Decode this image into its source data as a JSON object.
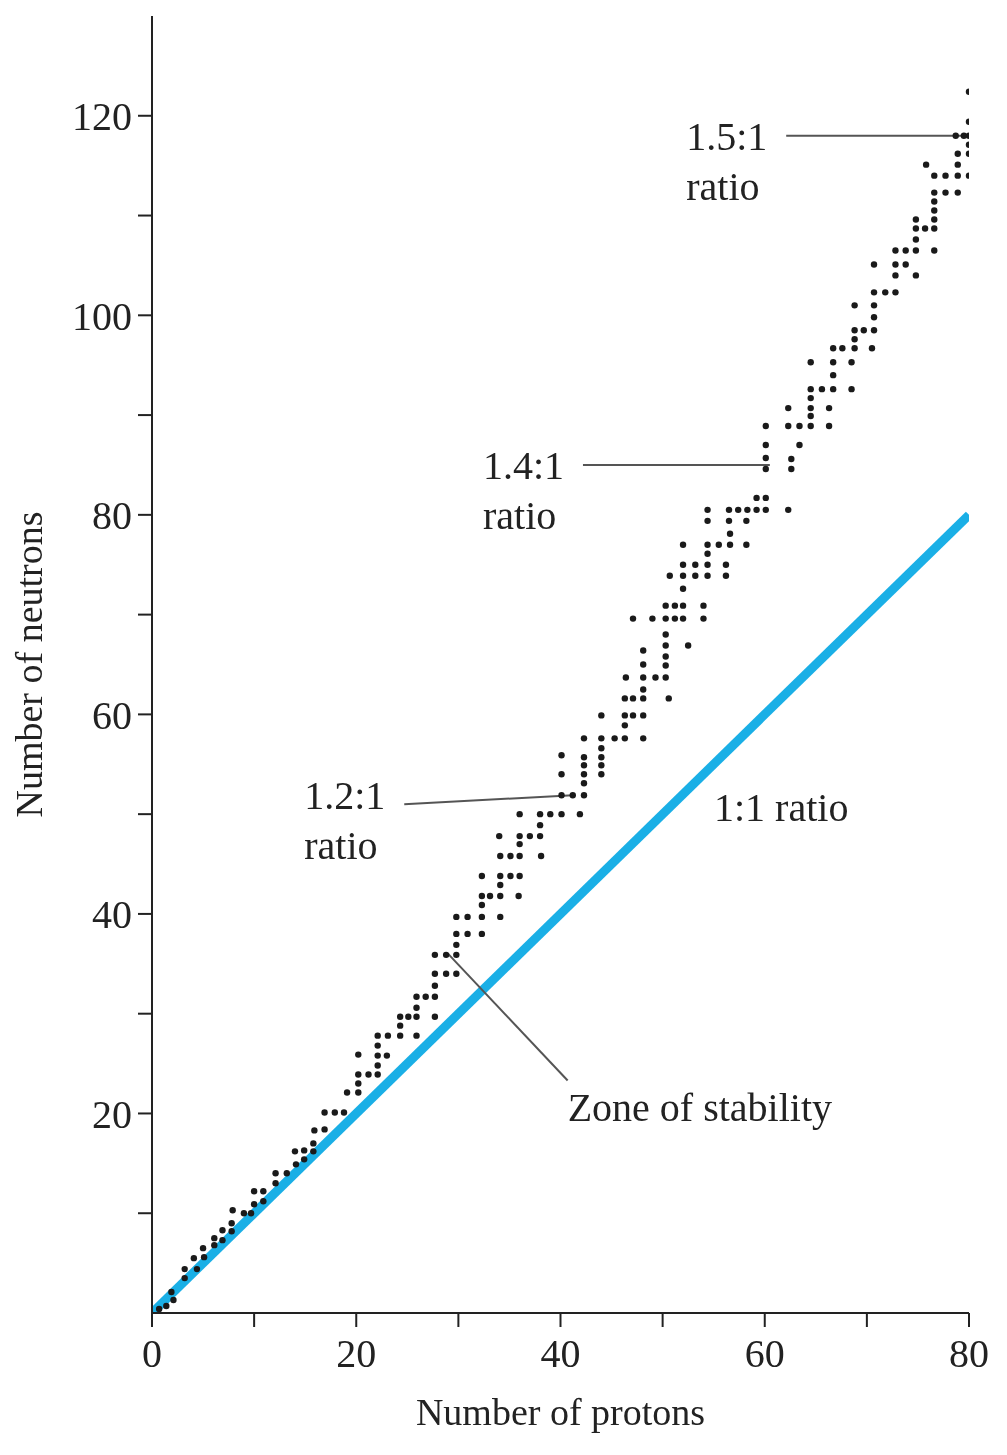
{
  "chart_data": {
    "type": "scatter",
    "xlabel": "Number of protons",
    "ylabel": "Number of neutrons",
    "xlim": [
      0,
      80
    ],
    "ylim": [
      0,
      130
    ],
    "xticks": [
      0,
      {
        "value": 10,
        "label": null
      },
      20,
      {
        "value": 30,
        "label": null
      },
      40,
      {
        "value": 50,
        "label": null
      },
      60,
      {
        "value": 70,
        "label": null
      },
      80
    ],
    "yticks": [
      {
        "value": 10,
        "label": null
      },
      20,
      {
        "value": 30,
        "label": null
      },
      40,
      {
        "value": 50,
        "label": null
      },
      60,
      {
        "value": 70,
        "label": null
      },
      80,
      {
        "value": 90,
        "label": null
      },
      100,
      {
        "value": 110,
        "label": null
      },
      120
    ],
    "marker": "circle",
    "series": [
      {
        "color": "#1a1a1a",
        "x": [
          0.7,
          1.4,
          2.1,
          1.9,
          3.2,
          3.2,
          4.4,
          4.1,
          5.1,
          5.0,
          6.1,
          6.1,
          6.9,
          6.9,
          7.8,
          7.8,
          7.9,
          9.0,
          9.7,
          10.0,
          10.9,
          10.0,
          10.9,
          12.1,
          12.1,
          13.2,
          14.1,
          14.9,
          14.0,
          14.9,
          15.8,
          15.8,
          15.9,
          16.9,
          16.9,
          17.9,
          18.8,
          19.1,
          20.2,
          20.2,
          20.2,
          20.2,
          21.2,
          22.1,
          22.1,
          22.1,
          23.0,
          22.1,
          22.1,
          23.1,
          24.3,
          24.3,
          24.3,
          25.1,
          25.9,
          25.9,
          25.9,
          25.9,
          26.8,
          27.7,
          27.7,
          27.7,
          27.7,
          27.7,
          28.8,
          29.8,
          29.8,
          28.8,
          29.8,
          29.8,
          30.9,
          32.3,
          29.8,
          30.9,
          32.3,
          34.1,
          32.3,
          32.3,
          33.1,
          34.1,
          35.9,
          34.1,
          32.3,
          34.1,
          35.1,
          36.0,
          34.1,
          35.1,
          36.0,
          38.1,
          36.0,
          36.0,
          34.0,
          37.0,
          38.0,
          38.0,
          36.0,
          38.0,
          39.0,
          40.1,
          41.9,
          40.1,
          41.2,
          42.3,
          42.3,
          42.3,
          42.3,
          42.3,
          42.3,
          40.1,
          40.1,
          44.0,
          44.0,
          44.0,
          44.0,
          44.0,
          44.0,
          45.3,
          46.3,
          48.1,
          46.3,
          46.3,
          47.1,
          48.1,
          46.3,
          47.1,
          48.1,
          50.6,
          48.1,
          46.4,
          48.1,
          49.3,
          50.3,
          48.1,
          48.1,
          50.3,
          50.3,
          50.3,
          52.5,
          50.3,
          47.1,
          49.0,
          50.3,
          51.2,
          52.0,
          54.0,
          50.3,
          51.2,
          52.0,
          54.0,
          52.0,
          50.7,
          52.0,
          53.2,
          54.4,
          56.2,
          52.0,
          53.2,
          54.4,
          56.2,
          54.4,
          52.0,
          54.4,
          55.5,
          56.6,
          58.2,
          56.6,
          54.4,
          56.5,
          58.2,
          54.4,
          56.5,
          57.4,
          58.3,
          59.2,
          60.1,
          62.3,
          59.2,
          60.1,
          60.1,
          60.1,
          60.1,
          60.1,
          62.6,
          62.6,
          63.4,
          62.3,
          63.4,
          64.5,
          66.3,
          64.5,
          62.3,
          64.5,
          66.3,
          64.5,
          64.5,
          65.6,
          66.7,
          68.5,
          80.0,
          80.0,
          80.0,
          78.7,
          79.5,
          80.0,
          80.0,
          78.9,
          78.9,
          75.8,
          76.6,
          77.7,
          78.9,
          80.0,
          76.6,
          77.7,
          78.9,
          76.6,
          76.6,
          76.6,
          76.6,
          76.6,
          74.8,
          74.8,
          75.7,
          74.8,
          74.8,
          73.8,
          72.8,
          72.8,
          73.8,
          70.7,
          72.8,
          74.8,
          70.7,
          71.8,
          72.8,
          68.8,
          70.7,
          70.7,
          68.8,
          69.7,
          70.7,
          68.8,
          66.7,
          67.6,
          68.8,
          70.5,
          64.5,
          66.7,
          68.5,
          66.7
        ],
        "values": [
          0.4,
          0.7,
          1.3,
          2.1,
          3.5,
          4.4,
          4.4,
          5.5,
          5.6,
          6.5,
          6.8,
          7.5,
          7.3,
          8.3,
          8.2,
          9.0,
          10.3,
          10.0,
          10.0,
          10.9,
          11.2,
          12.2,
          12.2,
          13.0,
          14.0,
          14.0,
          14.9,
          15.4,
          16.2,
          16.3,
          16.2,
          17.0,
          18.3,
          18.4,
          20.1,
          20.1,
          20.1,
          22.1,
          22.1,
          23.0,
          23.9,
          25.9,
          23.9,
          23.9,
          24.8,
          25.8,
          25.8,
          26.8,
          27.8,
          27.8,
          27.8,
          28.8,
          29.7,
          29.7,
          29.7,
          27.8,
          30.6,
          31.7,
          31.7,
          31.7,
          29.7,
          32.8,
          34.0,
          35.9,
          35.9,
          35.9,
          36.9,
          34.0,
          34.0,
          38.0,
          38.0,
          38.0,
          39.7,
          39.7,
          39.7,
          39.7,
          40.9,
          41.8,
          41.8,
          41.8,
          41.8,
          42.9,
          43.8,
          43.8,
          43.8,
          43.8,
          45.8,
          45.8,
          45.8,
          45.8,
          47.0,
          47.8,
          47.8,
          47.8,
          47.8,
          48.9,
          50.0,
          50.0,
          50.0,
          50.0,
          50.0,
          51.9,
          51.9,
          51.9,
          53.1,
          54.0,
          54.9,
          55.7,
          57.6,
          54.0,
          55.9,
          54.0,
          54.9,
          55.7,
          56.6,
          57.6,
          59.9,
          57.6,
          57.6,
          57.6,
          58.9,
          59.9,
          59.9,
          59.9,
          61.6,
          61.6,
          61.6,
          61.6,
          62.5,
          63.7,
          63.7,
          63.7,
          63.7,
          65.0,
          66.4,
          64.9,
          65.8,
          66.9,
          66.9,
          68.0,
          69.6,
          69.6,
          69.6,
          69.6,
          69.6,
          69.6,
          70.9,
          70.9,
          70.9,
          70.9,
          72.6,
          73.9,
          73.9,
          73.9,
          73.9,
          73.9,
          75.0,
          75.0,
          75.0,
          75.0,
          76.1,
          77.0,
          77.0,
          77.0,
          77.0,
          77.0,
          78.1,
          79.4,
          79.4,
          79.4,
          80.5,
          80.5,
          80.5,
          80.5,
          80.5,
          80.5,
          80.5,
          81.7,
          81.7,
          84.6,
          85.7,
          87.0,
          88.9,
          84.6,
          85.6,
          87.0,
          88.9,
          88.9,
          88.9,
          88.9,
          89.9,
          90.7,
          90.7,
          90.7,
          91.7,
          92.6,
          92.6,
          92.6,
          92.6,
          122.4,
          119.4,
          118.0,
          118.0,
          118.0,
          117.1,
          116.2,
          116.2,
          115.1,
          115.1,
          114.0,
          114.0,
          114.0,
          114.0,
          112.3,
          112.3,
          112.3,
          111.4,
          110.5,
          109.6,
          108.7,
          106.5,
          109.6,
          108.7,
          108.7,
          107.6,
          106.5,
          106.5,
          106.5,
          105.1,
          105.1,
          105.1,
          104.0,
          104.0,
          102.3,
          102.3,
          102.3,
          101.0,
          101.0,
          99.8,
          98.5,
          98.5,
          98.5,
          97.6,
          96.7,
          96.7,
          96.7,
          96.7,
          95.3,
          95.3,
          95.3,
          94.0
        ]
      },
      {
        "type": "line",
        "name": "1:1 ratio",
        "color": "#1aafe6",
        "marker": "none",
        "x": [
          0,
          80
        ],
        "values": [
          0,
          80
        ]
      }
    ],
    "annotations": [
      {
        "text": "1.5:1\nratio",
        "x": 80,
        "y": 118
      },
      {
        "text": "1.4:1\nratio",
        "x": 60.5,
        "y": 85
      },
      {
        "text": "1.2:1\nratio",
        "x": 41.2,
        "y": 51.9
      },
      {
        "text": "Zone of stability",
        "x": 29,
        "y": 36
      }
    ]
  }
}
